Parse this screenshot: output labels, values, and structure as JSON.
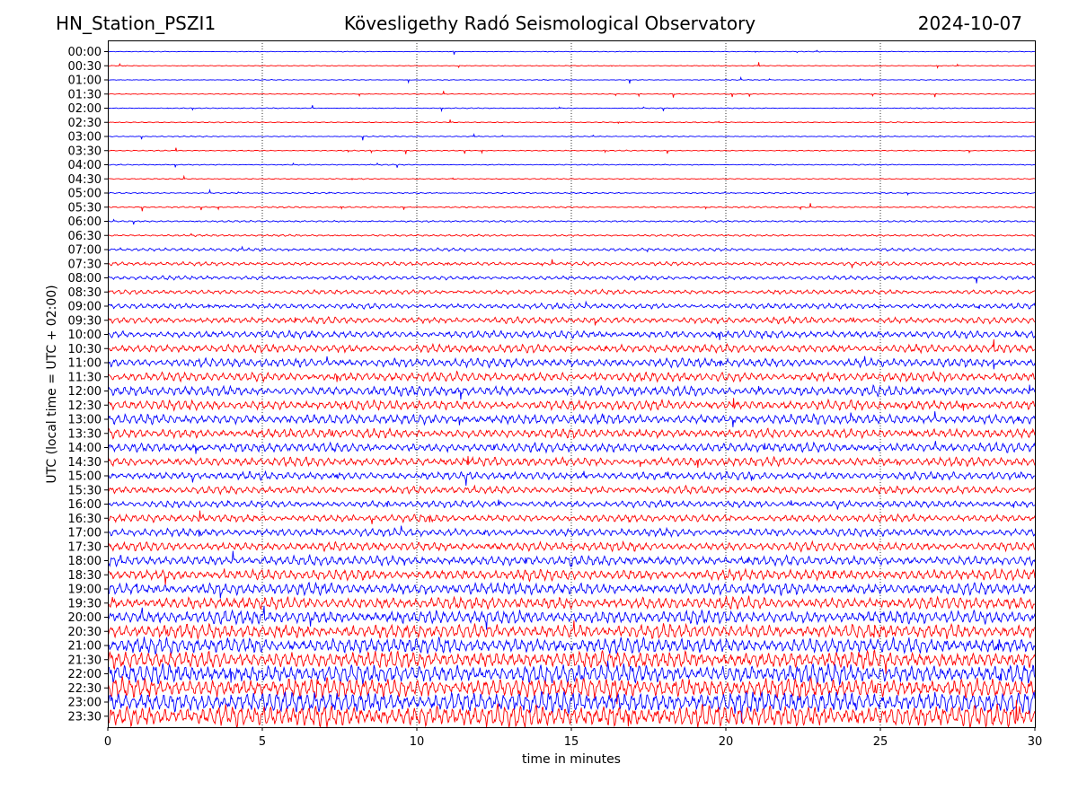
{
  "header": {
    "station": "HN_Station_PSZI1",
    "observatory": "Kövesligethy Radó Seismological Observatory",
    "date": "2024-10-07"
  },
  "chart_data": {
    "type": "line",
    "subtype": "helicorder",
    "xlabel": "time in minutes",
    "ylabel": "UTC (local time = UTC + 02:00)",
    "xlim": [
      0,
      30
    ],
    "xticks": [
      "0",
      "5",
      "10",
      "15",
      "20",
      "25",
      "30"
    ],
    "vertical_gridlines_dotted": true,
    "row_labels": [
      "00:00",
      "00:30",
      "01:00",
      "01:30",
      "02:00",
      "02:30",
      "03:00",
      "03:30",
      "04:00",
      "04:30",
      "05:00",
      "05:30",
      "06:00",
      "06:30",
      "07:00",
      "07:30",
      "08:00",
      "08:30",
      "09:00",
      "09:30",
      "10:00",
      "10:30",
      "11:00",
      "11:30",
      "12:00",
      "12:30",
      "13:00",
      "13:30",
      "14:00",
      "14:30",
      "15:00",
      "15:30",
      "16:00",
      "16:30",
      "17:00",
      "17:30",
      "18:00",
      "18:30",
      "19:00",
      "19:30",
      "20:00",
      "20:30",
      "21:00",
      "21:30",
      "22:00",
      "22:30",
      "23:00",
      "23:30"
    ],
    "trace_colors": [
      "#0000ff",
      "#ff0000"
    ],
    "relative_amplitude": [
      0.3,
      0.3,
      0.3,
      0.3,
      0.35,
      0.4,
      0.4,
      0.4,
      0.4,
      0.4,
      0.5,
      0.6,
      0.7,
      0.8,
      1.2,
      1.5,
      1.6,
      1.8,
      2.2,
      2.6,
      3.0,
      3.4,
      3.6,
      3.8,
      4.0,
      4.0,
      4.0,
      3.8,
      3.8,
      3.6,
      3.2,
      3.0,
      2.8,
      3.0,
      3.2,
      3.6,
      4.0,
      4.4,
      4.8,
      5.0,
      5.4,
      5.8,
      6.2,
      6.8,
      7.5,
      8.0,
      8.5,
      9.0
    ]
  }
}
